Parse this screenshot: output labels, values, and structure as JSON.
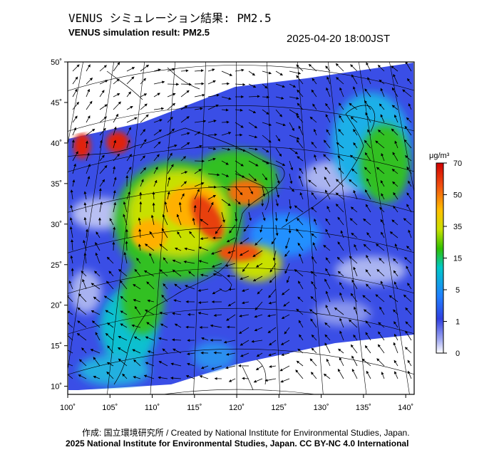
{
  "header": {
    "title_jp": "VENUS シミュレーション結果: PM2.5",
    "title_en": "VENUS simulation result: PM2.5",
    "timestamp": "2025-04-20 18:00JST"
  },
  "footer": {
    "credit": "作成: 国立環境研究所 / Created by National Institute for Environmental Studies, Japan.",
    "copyright": "2025 National Institute for Environmental Studies, Japan. CC BY-NC 4.0 International"
  },
  "map": {
    "lon_ticks": [
      "100˚",
      "105˚",
      "110˚",
      "115˚",
      "120˚",
      "125˚",
      "130˚",
      "135˚",
      "140˚"
    ],
    "lat_ticks": [
      "50˚",
      "45˚",
      "40˚",
      "35˚",
      "30˚",
      "25˚",
      "20˚",
      "15˚",
      "10˚"
    ],
    "lon_range": [
      100,
      141
    ],
    "lat_range": [
      9,
      50
    ]
  },
  "colorbar": {
    "unit": "μg/m³",
    "levels": [
      "70",
      "50",
      "35",
      "15",
      "5",
      "1",
      "0"
    ],
    "colors": [
      "#d00000",
      "#f05010",
      "#ffc000",
      "#c8e000",
      "#30c000",
      "#00c8c8",
      "#2080ff",
      "#3040e0",
      "#a0a8f0",
      "#ffffff"
    ]
  }
}
